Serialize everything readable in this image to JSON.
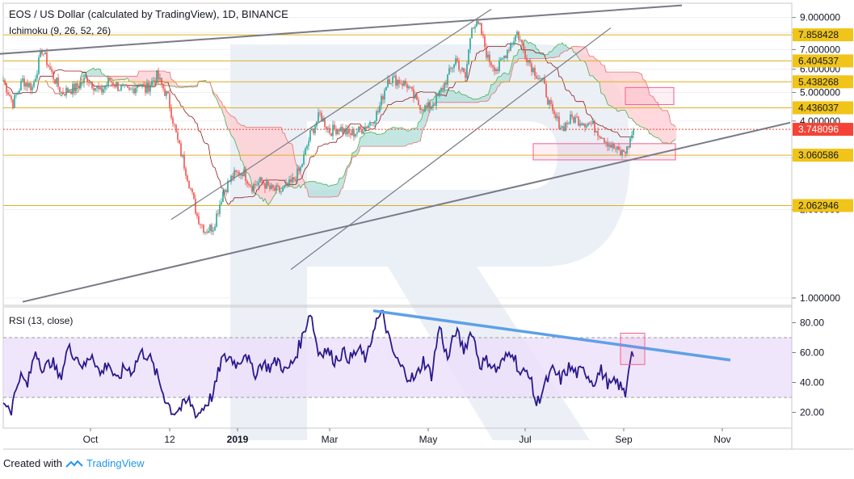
{
  "chart_data": [
    {
      "type": "candlestick",
      "title": "EOS / US Dollar (calculated by TradingView), 1D, BINANCE",
      "indicator_label": "Ichimoku (9, 26, 52, 26)",
      "y_scale": "log",
      "ylim": [
        0.95,
        10.0
      ],
      "y_ticks": [
        "9.000000",
        "8.000000",
        "7.000000",
        "6.000000",
        "5.000000",
        "4.000000",
        "3.000000",
        "2.000000",
        "1.000000"
      ],
      "y_tick_values": [
        9,
        8,
        7,
        6,
        5,
        4,
        3,
        2,
        1
      ],
      "x_ticks": [
        "Oct",
        "12",
        "2019",
        "Mar",
        "May",
        "Jul",
        "Sep",
        "Nov"
      ],
      "horizontal_levels": [
        {
          "value": 7.858428,
          "label": "7.858428"
        },
        {
          "value": 6.404537,
          "label": "6.404537"
        },
        {
          "value": 5.438268,
          "label": "5.438268"
        },
        {
          "value": 4.436037,
          "label": "4.436037"
        },
        {
          "value": 3.060586,
          "label": "3.060586"
        },
        {
          "value": 2.062946,
          "label": "2.062946"
        }
      ],
      "current_price": {
        "value": 3.748096,
        "label": "3.748096"
      },
      "price_path": [
        [
          0,
          5.5
        ],
        [
          6,
          4.6
        ],
        [
          12,
          5.5
        ],
        [
          18,
          5.2
        ],
        [
          24,
          7.0
        ],
        [
          30,
          5.8
        ],
        [
          36,
          5.0
        ],
        [
          45,
          5.2
        ],
        [
          52,
          5.6
        ],
        [
          60,
          5.0
        ],
        [
          66,
          5.5
        ],
        [
          72,
          5.2
        ],
        [
          78,
          5.0
        ],
        [
          84,
          5.4
        ],
        [
          88,
          5.1
        ],
        [
          95,
          5.7
        ],
        [
          102,
          4.8
        ],
        [
          108,
          3.4
        ],
        [
          114,
          2.6
        ],
        [
          120,
          1.9
        ],
        [
          125,
          1.7
        ],
        [
          130,
          1.75
        ],
        [
          136,
          2.3
        ],
        [
          142,
          2.6
        ],
        [
          148,
          2.7
        ],
        [
          154,
          2.4
        ],
        [
          160,
          2.5
        ],
        [
          165,
          2.35
        ],
        [
          172,
          2.3
        ],
        [
          178,
          2.45
        ],
        [
          184,
          2.75
        ],
        [
          190,
          3.6
        ],
        [
          196,
          4.2
        ],
        [
          202,
          3.7
        ],
        [
          208,
          3.8
        ],
        [
          214,
          3.6
        ],
        [
          220,
          3.7
        ],
        [
          226,
          3.9
        ],
        [
          232,
          4.3
        ],
        [
          238,
          5.6
        ],
        [
          244,
          5.5
        ],
        [
          250,
          5.3
        ],
        [
          256,
          4.6
        ],
        [
          262,
          4.4
        ],
        [
          268,
          4.7
        ],
        [
          274,
          5.5
        ],
        [
          280,
          6.5
        ],
        [
          286,
          5.6
        ],
        [
          290,
          8.6
        ],
        [
          295,
          8.3
        ],
        [
          300,
          6.5
        ],
        [
          306,
          6.0
        ],
        [
          312,
          7.0
        ],
        [
          318,
          8.0
        ],
        [
          323,
          6.8
        ],
        [
          328,
          6.0
        ],
        [
          334,
          5.4
        ],
        [
          340,
          4.2
        ],
        [
          346,
          3.8
        ],
        [
          352,
          4.1
        ],
        [
          358,
          4.0
        ],
        [
          364,
          3.9
        ],
        [
          370,
          3.6
        ],
        [
          376,
          3.3
        ],
        [
          382,
          3.1
        ],
        [
          386,
          3.2
        ],
        [
          390,
          3.75
        ]
      ],
      "trendlines": [
        {
          "name": "upper-channel",
          "from": [
            -5,
            6.75
          ],
          "to": [
            420,
            9.9
          ]
        },
        {
          "name": "lower-channel",
          "from": [
            12,
            0.97
          ],
          "to": [
            487,
            3.95
          ]
        },
        {
          "name": "rising-channel-top",
          "from": [
            104,
            1.85
          ],
          "to": [
            302,
            9.6
          ]
        },
        {
          "name": "rising-channel-bottom",
          "from": [
            178,
            1.25
          ],
          "to": [
            376,
            8.3
          ]
        }
      ],
      "highlight_boxes": [
        {
          "from": [
            385,
            5.2
          ],
          "to": [
            415,
            4.55
          ]
        },
        {
          "from": [
            328,
            3.35
          ],
          "to": [
            416,
            2.95
          ]
        }
      ]
    },
    {
      "type": "line",
      "title": "RSI (13, close)",
      "ylim": [
        10,
        90
      ],
      "y_ticks": [
        "80.00",
        "60.00",
        "40.00",
        "20.00"
      ],
      "y_tick_values": [
        80,
        60,
        40,
        20
      ],
      "band": [
        30,
        70
      ],
      "rsi_path": [
        [
          0,
          28
        ],
        [
          5,
          22
        ],
        [
          10,
          45
        ],
        [
          15,
          38
        ],
        [
          20,
          62
        ],
        [
          25,
          48
        ],
        [
          30,
          55
        ],
        [
          35,
          42
        ],
        [
          40,
          63
        ],
        [
          45,
          58
        ],
        [
          50,
          50
        ],
        [
          55,
          60
        ],
        [
          60,
          45
        ],
        [
          65,
          54
        ],
        [
          70,
          40
        ],
        [
          75,
          50
        ],
        [
          80,
          48
        ],
        [
          85,
          60
        ],
        [
          90,
          58
        ],
        [
          95,
          45
        ],
        [
          100,
          30
        ],
        [
          105,
          20
        ],
        [
          110,
          23
        ],
        [
          115,
          28
        ],
        [
          120,
          18
        ],
        [
          125,
          25
        ],
        [
          130,
          32
        ],
        [
          135,
          55
        ],
        [
          140,
          57
        ],
        [
          145,
          52
        ],
        [
          150,
          61
        ],
        [
          155,
          45
        ],
        [
          160,
          53
        ],
        [
          165,
          50
        ],
        [
          170,
          55
        ],
        [
          175,
          47
        ],
        [
          180,
          55
        ],
        [
          185,
          70
        ],
        [
          190,
          88
        ],
        [
          195,
          60
        ],
        [
          200,
          62
        ],
        [
          205,
          55
        ],
        [
          210,
          60
        ],
        [
          215,
          56
        ],
        [
          220,
          62
        ],
        [
          225,
          55
        ],
        [
          230,
          80
        ],
        [
          235,
          86
        ],
        [
          240,
          63
        ],
        [
          245,
          52
        ],
        [
          250,
          45
        ],
        [
          255,
          42
        ],
        [
          260,
          55
        ],
        [
          265,
          45
        ],
        [
          270,
          78
        ],
        [
          275,
          55
        ],
        [
          280,
          75
        ],
        [
          285,
          62
        ],
        [
          290,
          75
        ],
        [
          295,
          52
        ],
        [
          300,
          55
        ],
        [
          305,
          48
        ],
        [
          310,
          55
        ],
        [
          315,
          62
        ],
        [
          320,
          45
        ],
        [
          325,
          48
        ],
        [
          330,
          25
        ],
        [
          335,
          38
        ],
        [
          340,
          48
        ],
        [
          345,
          42
        ],
        [
          350,
          50
        ],
        [
          355,
          46
        ],
        [
          360,
          48
        ],
        [
          365,
          40
        ],
        [
          370,
          48
        ],
        [
          375,
          38
        ],
        [
          380,
          40
        ],
        [
          385,
          32
        ],
        [
          388,
          58
        ],
        [
          390,
          60
        ]
      ],
      "trendline": {
        "from": [
          229,
          88
        ],
        "to": [
          450,
          55
        ]
      },
      "highlight_box": {
        "from": [
          382,
          73
        ],
        "to": [
          397,
          52
        ]
      }
    }
  ],
  "footer": {
    "created_with": "Created with",
    "brand": "TradingView"
  },
  "colors": {
    "candle_up": "#26a69a",
    "candle_down": "#ef5350",
    "cloud_up": "#b2dfdb",
    "cloud_down": "#ffcdd2",
    "level_line": "#e0b020",
    "level_label_bg": "#f0c419",
    "price_label_bg": "#f44336",
    "trendline": "#787b86",
    "rsi_line": "#2a1a8c",
    "rsi_band": "#ece0fb",
    "rsi_trend": "#5ea0e8",
    "highlight_box": "#f06292"
  }
}
